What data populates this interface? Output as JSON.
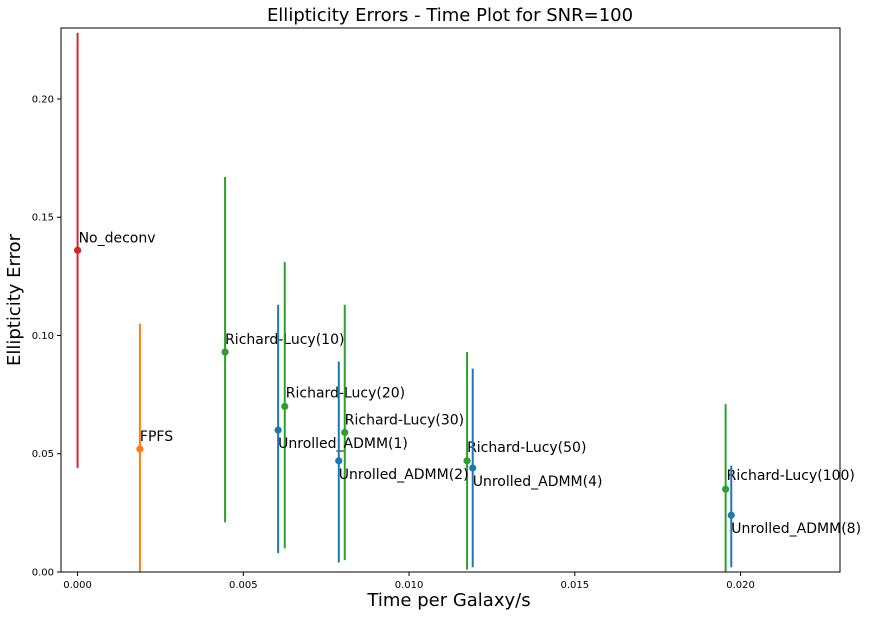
{
  "chart_data": {
    "type": "scatter",
    "title": "Ellipticity Errors - Time Plot for SNR=100",
    "xlabel": "Time per Galaxy/s",
    "ylabel": "Ellipticity Error",
    "xlim": [
      -0.0005,
      0.023
    ],
    "ylim": [
      0.0,
      0.23
    ],
    "xticks": [
      0.0,
      0.005,
      0.01,
      0.015,
      0.02
    ],
    "xtick_labels": [
      "0.000",
      "0.005",
      "0.010",
      "0.015",
      "0.020"
    ],
    "yticks": [
      0.0,
      0.05,
      0.1,
      0.15,
      0.2
    ],
    "ytick_labels": [
      "0.00",
      "0.05",
      "0.10",
      "0.15",
      "0.20"
    ],
    "grid": false,
    "colors": {
      "No_deconv": "#d62728",
      "FPFS": "#ff7f0e",
      "Richard-Lucy": "#2ca02c",
      "Unrolled_ADMM": "#1f77b4"
    },
    "points": [
      {
        "label": "No_deconv",
        "group": "No_deconv",
        "x": 0.0,
        "y": 0.136,
        "err_low": 0.044,
        "err_high": 0.228
      },
      {
        "label": "FPFS",
        "group": "FPFS",
        "x": 0.00188,
        "y": 0.052,
        "err_low": 0.0,
        "err_high": 0.105
      },
      {
        "label": "Richard-Lucy(10)",
        "group": "Richard-Lucy",
        "x": 0.00445,
        "y": 0.093,
        "err_low": 0.021,
        "err_high": 0.167
      },
      {
        "label": "Richard-Lucy(20)",
        "group": "Richard-Lucy",
        "x": 0.00625,
        "y": 0.07,
        "err_low": 0.01,
        "err_high": 0.131
      },
      {
        "label": "Richard-Lucy(30)",
        "group": "Richard-Lucy",
        "x": 0.00806,
        "y": 0.059,
        "err_low": 0.005,
        "err_high": 0.113
      },
      {
        "label": "Richard-Lucy(50)",
        "group": "Richard-Lucy",
        "x": 0.01175,
        "y": 0.047,
        "err_low": 0.001,
        "err_high": 0.093
      },
      {
        "label": "Richard-Lucy(100)",
        "group": "Richard-Lucy",
        "x": 0.01955,
        "y": 0.035,
        "err_low": 0.0,
        "err_high": 0.071
      },
      {
        "label": "Unrolled_ADMM(1)",
        "group": "Unrolled_ADMM",
        "x": 0.00605,
        "y": 0.06,
        "err_low": 0.008,
        "err_high": 0.113
      },
      {
        "label": "Unrolled_ADMM(2)",
        "group": "Unrolled_ADMM",
        "x": 0.00788,
        "y": 0.047,
        "err_low": 0.004,
        "err_high": 0.089
      },
      {
        "label": "Unrolled_ADMM(4)",
        "group": "Unrolled_ADMM",
        "x": 0.01192,
        "y": 0.044,
        "err_low": 0.002,
        "err_high": 0.086
      },
      {
        "label": "Unrolled_ADMM(8)",
        "group": "Unrolled_ADMM",
        "x": 0.01972,
        "y": 0.024,
        "err_low": 0.002,
        "err_high": 0.045
      }
    ]
  }
}
